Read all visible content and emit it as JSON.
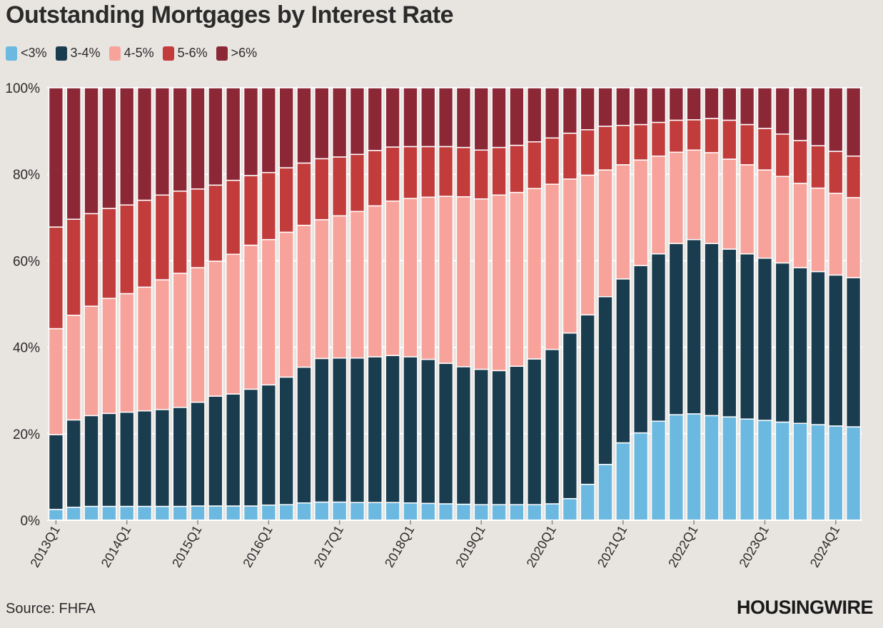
{
  "title": "Outstanding Mortgages by Interest Rate",
  "source": "Source: FHFA",
  "logo_text": "HOUSINGWIRE",
  "colors": {
    "background": "#e8e5e1",
    "grid": "#ffffff",
    "axis": "#ffffff",
    "text": "#2b2b2b"
  },
  "chart_data": {
    "type": "bar",
    "stacked": true,
    "title": "Outstanding Mortgages by Interest Rate",
    "xlabel": "",
    "ylabel": "",
    "ylim": [
      0,
      100
    ],
    "y_ticks": [
      0,
      20,
      40,
      60,
      80,
      100
    ],
    "y_tick_labels": [
      "0%",
      "20%",
      "40%",
      "60%",
      "80%",
      "100%"
    ],
    "x_tick_labels": [
      "2013Q1",
      "2014Q1",
      "2015Q1",
      "2016Q1",
      "2017Q1",
      "2018Q1",
      "2019Q1",
      "2020Q1",
      "2021Q1",
      "2022Q1",
      "2023Q1",
      "2024Q1"
    ],
    "legend_position": "top-left",
    "categories": [
      "2013Q1",
      "2013Q2",
      "2013Q3",
      "2013Q4",
      "2014Q1",
      "2014Q2",
      "2014Q3",
      "2014Q4",
      "2015Q1",
      "2015Q2",
      "2015Q3",
      "2015Q4",
      "2016Q1",
      "2016Q2",
      "2016Q3",
      "2016Q4",
      "2017Q1",
      "2017Q2",
      "2017Q3",
      "2017Q4",
      "2018Q1",
      "2018Q2",
      "2018Q3",
      "2018Q4",
      "2019Q1",
      "2019Q2",
      "2019Q3",
      "2019Q4",
      "2020Q1",
      "2020Q2",
      "2020Q3",
      "2020Q4",
      "2021Q1",
      "2021Q2",
      "2021Q3",
      "2021Q4",
      "2022Q1",
      "2022Q2",
      "2022Q3",
      "2022Q4",
      "2023Q1",
      "2023Q2",
      "2023Q3",
      "2023Q4",
      "2024Q1",
      "2024Q2"
    ],
    "series": [
      {
        "name": "<3%",
        "color": "#6bb9e0",
        "values": [
          2.5,
          3,
          3.2,
          3.2,
          3.2,
          3.2,
          3.2,
          3.2,
          3.3,
          3.3,
          3.3,
          3.3,
          3.5,
          3.6,
          4,
          4.2,
          4.2,
          4.1,
          4.1,
          4.1,
          4,
          3.9,
          3.8,
          3.7,
          3.6,
          3.6,
          3.6,
          3.6,
          3.8,
          5,
          8.3,
          12.9,
          17.9,
          20.2,
          22.9,
          24.4,
          24.6,
          24.2,
          23.9,
          23.4,
          23.1,
          22.7,
          22.4,
          22.1,
          21.8,
          21.6
        ]
      },
      {
        "name": "3-4%",
        "color": "#1a3c4f",
        "values": [
          17.3,
          20.2,
          21,
          21.5,
          21.8,
          22.1,
          22.4,
          22.9,
          24,
          25.4,
          25.9,
          27,
          27.8,
          29.5,
          31.4,
          33.2,
          33.3,
          33.4,
          33.7,
          34,
          33.8,
          33.3,
          32.5,
          31.8,
          31.3,
          31,
          32,
          33.7,
          35.7,
          38.3,
          39.2,
          38.8,
          37.9,
          38.7,
          38.7,
          39.6,
          40.3,
          39.8,
          38.8,
          38.2,
          37.5,
          36.8,
          36,
          35.4,
          34.9,
          34.5
        ]
      },
      {
        "name": "4-5%",
        "color": "#f7a39b",
        "values": [
          24.5,
          24.2,
          25.3,
          26.6,
          27.4,
          28.6,
          30,
          31,
          31.1,
          31.2,
          32.3,
          33.3,
          33.6,
          33.5,
          32.8,
          32.1,
          32.9,
          33.9,
          34.9,
          35.7,
          36.6,
          37.5,
          38.6,
          39.3,
          39.4,
          40.6,
          40.2,
          39.4,
          38.2,
          35.6,
          32.3,
          29.3,
          26.4,
          24.4,
          22.6,
          21.1,
          20.7,
          21,
          20.8,
          20.6,
          20.4,
          20,
          19.5,
          19.3,
          18.9,
          18.5
        ]
      },
      {
        "name": "5-6%",
        "color": "#c23c3c",
        "values": [
          23.5,
          22.2,
          21.4,
          20.8,
          20.5,
          20.1,
          19.6,
          19,
          18.2,
          17.6,
          17.1,
          16.1,
          15.5,
          14.9,
          14.4,
          14.1,
          13.6,
          13.2,
          12.8,
          12.5,
          12,
          11.7,
          11.5,
          11.4,
          11.3,
          11,
          10.9,
          10.8,
          10.7,
          10.6,
          10.5,
          10.1,
          9.1,
          8.2,
          7.8,
          7.4,
          7,
          7.9,
          9,
          9.3,
          9.6,
          9.8,
          9.9,
          9.8,
          9.7,
          9.6
        ]
      },
      {
        "name": ">6%",
        "color": "#8c2836",
        "values": [
          32.2,
          30.4,
          29.1,
          27.9,
          27.1,
          26,
          24.8,
          23.9,
          23.4,
          22.5,
          21.4,
          20.3,
          19.6,
          18.5,
          17.4,
          16.4,
          16,
          15.4,
          14.5,
          13.7,
          13.6,
          13.6,
          13.6,
          13.8,
          14.4,
          13.8,
          13.3,
          12.5,
          11.6,
          10.5,
          9.7,
          8.9,
          8.7,
          8.5,
          8,
          7.5,
          7.4,
          7.1,
          7.5,
          8.5,
          9.4,
          10.7,
          12.2,
          13.4,
          14.7,
          15.8
        ]
      }
    ]
  }
}
